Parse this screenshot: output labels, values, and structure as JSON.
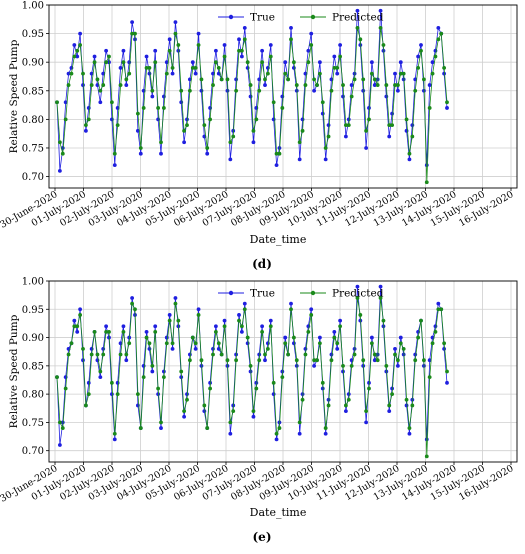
{
  "chart_data": [
    {
      "type": "line",
      "panel_label": "(d)",
      "title": "",
      "xlabel": "Date_time",
      "ylabel": "Relative Speed Pump",
      "ylim": [
        0.68,
        1.0
      ],
      "yticks": [
        "0.70",
        "0.75",
        "0.80",
        "0.85",
        "0.90",
        "0.95",
        "1.00"
      ],
      "xticks": [
        "30-June-2020",
        "01-July-2020",
        "02-July-2020",
        "03-July-2020",
        "04-July-2020",
        "05-July-2020",
        "06-July-2020",
        "07-July-2020",
        "08-July-2020",
        "09-July-2020",
        "10-July-2020",
        "11-July-2020",
        "12-July-2020",
        "13-July-2020",
        "14-July-2020",
        "15-July-2020",
        "16-July-2020"
      ],
      "grid": true,
      "legend_position": "top-center",
      "series": [
        {
          "name": "True",
          "color": "#1f1fe0",
          "values": [
            0.83,
            0.71,
            0.75,
            0.83,
            0.88,
            0.89,
            0.93,
            0.91,
            0.95,
            0.86,
            0.78,
            0.82,
            0.88,
            0.91,
            0.86,
            0.83,
            0.88,
            0.92,
            0.9,
            0.8,
            0.72,
            0.82,
            0.89,
            0.92,
            0.86,
            0.9,
            0.97,
            0.94,
            0.78,
            0.74,
            0.85,
            0.91,
            0.88,
            0.84,
            0.92,
            0.8,
            0.74,
            0.84,
            0.9,
            0.94,
            0.88,
            0.97,
            0.92,
            0.83,
            0.76,
            0.8,
            0.87,
            0.9,
            0.88,
            0.95,
            0.85,
            0.77,
            0.74,
            0.82,
            0.88,
            0.92,
            0.88,
            0.87,
            0.93,
            0.85,
            0.73,
            0.78,
            0.87,
            0.94,
            0.91,
            0.96,
            0.89,
            0.84,
            0.76,
            0.82,
            0.87,
            0.92,
            0.86,
            0.89,
            0.93,
            0.8,
            0.72,
            0.75,
            0.84,
            0.9,
            0.87,
            0.96,
            0.89,
            0.85,
            0.73,
            0.8,
            0.88,
            0.92,
            0.95,
            0.85,
            0.86,
            0.9,
            0.81,
            0.73,
            0.79,
            0.87,
            0.91,
            0.88,
            0.93,
            0.84,
            0.77,
            0.8,
            0.86,
            0.88,
            0.99,
            0.93,
            0.85,
            0.75,
            0.82,
            0.9,
            0.86,
            0.87,
            0.99,
            0.92,
            0.84,
            0.77,
            0.81,
            0.88,
            0.85,
            0.9,
            0.87,
            0.78,
            0.73,
            0.79,
            0.87,
            0.91,
            0.93,
            0.85,
            0.72,
            0.86,
            0.9,
            0.92,
            0.96,
            0.95,
            0.88,
            0.82
          ]
        },
        {
          "name": "Predicted",
          "color": "#1a8a1a",
          "values": [
            0.83,
            0.76,
            0.74,
            0.8,
            0.86,
            0.88,
            0.91,
            0.92,
            0.93,
            0.88,
            0.79,
            0.8,
            0.86,
            0.9,
            0.87,
            0.85,
            0.86,
            0.9,
            0.91,
            0.83,
            0.74,
            0.79,
            0.86,
            0.9,
            0.87,
            0.88,
            0.95,
            0.95,
            0.81,
            0.75,
            0.82,
            0.89,
            0.89,
            0.85,
            0.9,
            0.82,
            0.76,
            0.82,
            0.88,
            0.92,
            0.89,
            0.95,
            0.93,
            0.85,
            0.78,
            0.79,
            0.85,
            0.89,
            0.89,
            0.93,
            0.87,
            0.79,
            0.75,
            0.8,
            0.86,
            0.9,
            0.89,
            0.87,
            0.91,
            0.87,
            0.76,
            0.77,
            0.85,
            0.92,
            0.92,
            0.94,
            0.9,
            0.86,
            0.78,
            0.8,
            0.85,
            0.9,
            0.87,
            0.88,
            0.91,
            0.83,
            0.74,
            0.74,
            0.82,
            0.88,
            0.87,
            0.94,
            0.9,
            0.86,
            0.76,
            0.78,
            0.86,
            0.9,
            0.93,
            0.87,
            0.86,
            0.88,
            0.83,
            0.75,
            0.77,
            0.85,
            0.89,
            0.89,
            0.91,
            0.86,
            0.79,
            0.79,
            0.84,
            0.87,
            0.96,
            0.94,
            0.87,
            0.78,
            0.8,
            0.88,
            0.87,
            0.86,
            0.96,
            0.93,
            0.86,
            0.79,
            0.79,
            0.86,
            0.86,
            0.88,
            0.88,
            0.8,
            0.74,
            0.77,
            0.85,
            0.89,
            0.92,
            0.87,
            0.69,
            0.82,
            0.88,
            0.91,
            0.94,
            0.95,
            0.89,
            0.83
          ]
        }
      ]
    },
    {
      "type": "line",
      "panel_label": "(e)",
      "title": "",
      "xlabel": "Date_time",
      "ylabel": "Relative Speed Pump",
      "ylim": [
        0.68,
        1.0
      ],
      "yticks": [
        "0.70",
        "0.75",
        "0.80",
        "0.85",
        "0.90",
        "0.95",
        "1.00"
      ],
      "xticks": [
        "30-June-2020",
        "01-July-2020",
        "02-July-2020",
        "03-July-2020",
        "04-July-2020",
        "05-July-2020",
        "06-July-2020",
        "07-July-2020",
        "08-July-2020",
        "09-July-2020",
        "10-July-2020",
        "11-July-2020",
        "12-July-2020",
        "13-July-2020",
        "14-July-2020",
        "15-July-2020",
        "16-July-2020"
      ],
      "grid": true,
      "legend_position": "top-center",
      "series": [
        {
          "name": "True",
          "color": "#1f1fe0",
          "values": [
            0.83,
            0.71,
            0.75,
            0.83,
            0.88,
            0.89,
            0.93,
            0.91,
            0.95,
            0.86,
            0.78,
            0.82,
            0.88,
            0.91,
            0.86,
            0.83,
            0.88,
            0.92,
            0.9,
            0.8,
            0.72,
            0.82,
            0.89,
            0.92,
            0.86,
            0.9,
            0.97,
            0.94,
            0.78,
            0.74,
            0.85,
            0.91,
            0.88,
            0.84,
            0.92,
            0.8,
            0.74,
            0.84,
            0.9,
            0.94,
            0.88,
            0.97,
            0.92,
            0.83,
            0.76,
            0.8,
            0.87,
            0.9,
            0.88,
            0.95,
            0.85,
            0.77,
            0.74,
            0.82,
            0.88,
            0.92,
            0.88,
            0.87,
            0.93,
            0.85,
            0.73,
            0.78,
            0.87,
            0.94,
            0.91,
            0.96,
            0.89,
            0.84,
            0.76,
            0.82,
            0.87,
            0.92,
            0.86,
            0.89,
            0.93,
            0.8,
            0.72,
            0.75,
            0.84,
            0.9,
            0.87,
            0.96,
            0.89,
            0.85,
            0.73,
            0.8,
            0.88,
            0.92,
            0.95,
            0.85,
            0.86,
            0.9,
            0.81,
            0.73,
            0.79,
            0.87,
            0.91,
            0.88,
            0.93,
            0.84,
            0.77,
            0.8,
            0.86,
            0.88,
            0.99,
            0.93,
            0.85,
            0.75,
            0.82,
            0.9,
            0.86,
            0.87,
            0.99,
            0.92,
            0.84,
            0.77,
            0.81,
            0.88,
            0.85,
            0.9,
            0.87,
            0.78,
            0.73,
            0.79,
            0.87,
            0.91,
            0.93,
            0.85,
            0.72,
            0.86,
            0.9,
            0.92,
            0.96,
            0.95,
            0.88,
            0.82
          ]
        },
        {
          "name": "Predicted",
          "color": "#1a8a1a",
          "values": [
            0.83,
            0.75,
            0.74,
            0.81,
            0.87,
            0.89,
            0.92,
            0.92,
            0.94,
            0.88,
            0.78,
            0.8,
            0.87,
            0.91,
            0.87,
            0.84,
            0.87,
            0.91,
            0.91,
            0.82,
            0.73,
            0.8,
            0.87,
            0.91,
            0.87,
            0.89,
            0.96,
            0.95,
            0.8,
            0.74,
            0.83,
            0.9,
            0.89,
            0.85,
            0.91,
            0.81,
            0.75,
            0.83,
            0.89,
            0.93,
            0.89,
            0.96,
            0.93,
            0.84,
            0.77,
            0.79,
            0.86,
            0.9,
            0.89,
            0.94,
            0.86,
            0.78,
            0.74,
            0.81,
            0.87,
            0.91,
            0.89,
            0.87,
            0.92,
            0.86,
            0.75,
            0.77,
            0.86,
            0.93,
            0.92,
            0.95,
            0.9,
            0.85,
            0.77,
            0.81,
            0.86,
            0.91,
            0.87,
            0.88,
            0.92,
            0.82,
            0.73,
            0.74,
            0.83,
            0.89,
            0.87,
            0.95,
            0.9,
            0.86,
            0.75,
            0.79,
            0.87,
            0.91,
            0.94,
            0.86,
            0.86,
            0.89,
            0.82,
            0.74,
            0.78,
            0.86,
            0.9,
            0.89,
            0.92,
            0.85,
            0.78,
            0.79,
            0.85,
            0.87,
            0.97,
            0.94,
            0.86,
            0.77,
            0.81,
            0.89,
            0.87,
            0.86,
            0.97,
            0.93,
            0.85,
            0.78,
            0.8,
            0.87,
            0.86,
            0.89,
            0.88,
            0.79,
            0.74,
            0.78,
            0.86,
            0.9,
            0.93,
            0.86,
            0.69,
            0.83,
            0.89,
            0.91,
            0.95,
            0.95,
            0.89,
            0.84
          ]
        }
      ]
    }
  ]
}
